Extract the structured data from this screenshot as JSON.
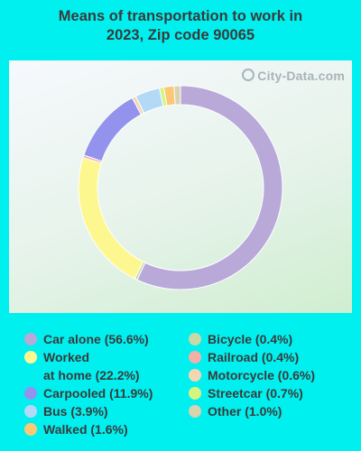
{
  "title_lines": [
    "Means of transportation to work in",
    "2023, Zip code 90065"
  ],
  "watermark": "City-Data.com",
  "chart_data": {
    "type": "pie",
    "donut": true,
    "title": "Means of transportation to work in 2023, Zip code 90065",
    "categories": [
      "Car alone",
      "Worked at home",
      "Carpooled",
      "Bus",
      "Walked",
      "Bicycle",
      "Railroad",
      "Motorcycle",
      "Streetcar",
      "Other"
    ],
    "values": [
      56.6,
      22.2,
      11.9,
      3.9,
      1.6,
      0.4,
      0.4,
      0.6,
      0.7,
      1.0
    ],
    "ring_order": [
      "Car alone",
      "Bicycle",
      "Worked at home",
      "Railroad",
      "Carpooled",
      "Motorcycle",
      "Bus",
      "Streetcar",
      "Walked",
      "Other"
    ],
    "colors": {
      "Car alone": "#b8a9d9",
      "Worked at home": "#fdf78f",
      "Carpooled": "#9393ee",
      "Bus": "#b3d9f7",
      "Walked": "#fcc875",
      "Bicycle": "#c6d9a6",
      "Railroad": "#f2b0a8",
      "Motorcycle": "#f6d5b3",
      "Streetcar": "#d4f57f",
      "Other": "#d8d3b0"
    },
    "legend_placement": "bottom"
  },
  "legend": {
    "left": [
      {
        "key": "Car alone",
        "label": "Car alone (56.6%)"
      },
      {
        "key": "Worked at home",
        "label": "Worked\nat home (22.2%)"
      },
      {
        "key": "Carpooled",
        "label": "Carpooled (11.9%)"
      },
      {
        "key": "Bus",
        "label": "Bus (3.9%)"
      },
      {
        "key": "Walked",
        "label": "Walked (1.6%)"
      }
    ],
    "right": [
      {
        "key": "Bicycle",
        "label": "Bicycle (0.4%)"
      },
      {
        "key": "Railroad",
        "label": "Railroad (0.4%)"
      },
      {
        "key": "Motorcycle",
        "label": "Motorcycle (0.6%)"
      },
      {
        "key": "Streetcar",
        "label": "Streetcar (0.7%)"
      },
      {
        "key": "Other",
        "label": "Other (1.0%)"
      }
    ]
  }
}
